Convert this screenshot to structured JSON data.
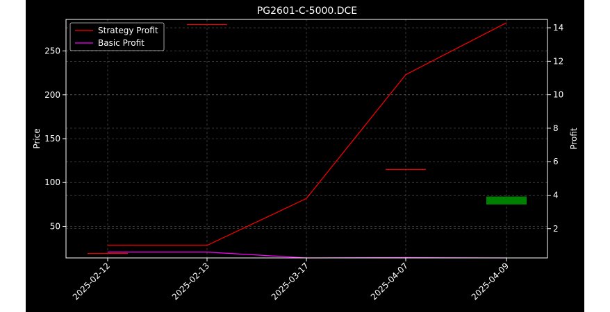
{
  "chart_data": {
    "type": "candlestick+line",
    "title": "PG2601-C-5000.DCE",
    "xlabel": "",
    "ylabel_left": "Price",
    "ylabel_right": "Profit",
    "categories": [
      "2025-02-12",
      "2025-02-13",
      "2025-03-17",
      "2025-04-07",
      "2025-04-09"
    ],
    "ylim_left": [
      14,
      286
    ],
    "ylim_right": [
      0.25,
      14.5
    ],
    "yticks_left": [
      50,
      100,
      150,
      200,
      250
    ],
    "yticks_right": [
      2,
      4,
      6,
      8,
      10,
      12,
      14
    ],
    "grid": true,
    "legend_position": "top-left",
    "candles": [
      {
        "date": "2025-02-12",
        "open": 19,
        "close": 19,
        "high": 19,
        "low": 19,
        "color": "#ff0000"
      },
      {
        "date": "2025-02-13",
        "open": 280,
        "close": 280,
        "high": 280,
        "low": 280,
        "color": "#ff0000"
      },
      {
        "date": "2025-04-07",
        "open": 115,
        "close": 115,
        "high": 115,
        "low": 115,
        "color": "#ff0000"
      },
      {
        "date": "2025-04-09",
        "open": 75,
        "close": 84,
        "high": 84,
        "low": 75,
        "color": "#008000"
      }
    ],
    "series": [
      {
        "name": "Strategy Profit",
        "axis": "right",
        "color": "#ff0000",
        "values": [
          1.0,
          1.0,
          3.8,
          11.2,
          14.3
        ]
      },
      {
        "name": "Basic Profit",
        "axis": "right",
        "color": "#ff00ff",
        "values": [
          0.6,
          0.6,
          0.25,
          0.27,
          0.25
        ]
      }
    ]
  }
}
